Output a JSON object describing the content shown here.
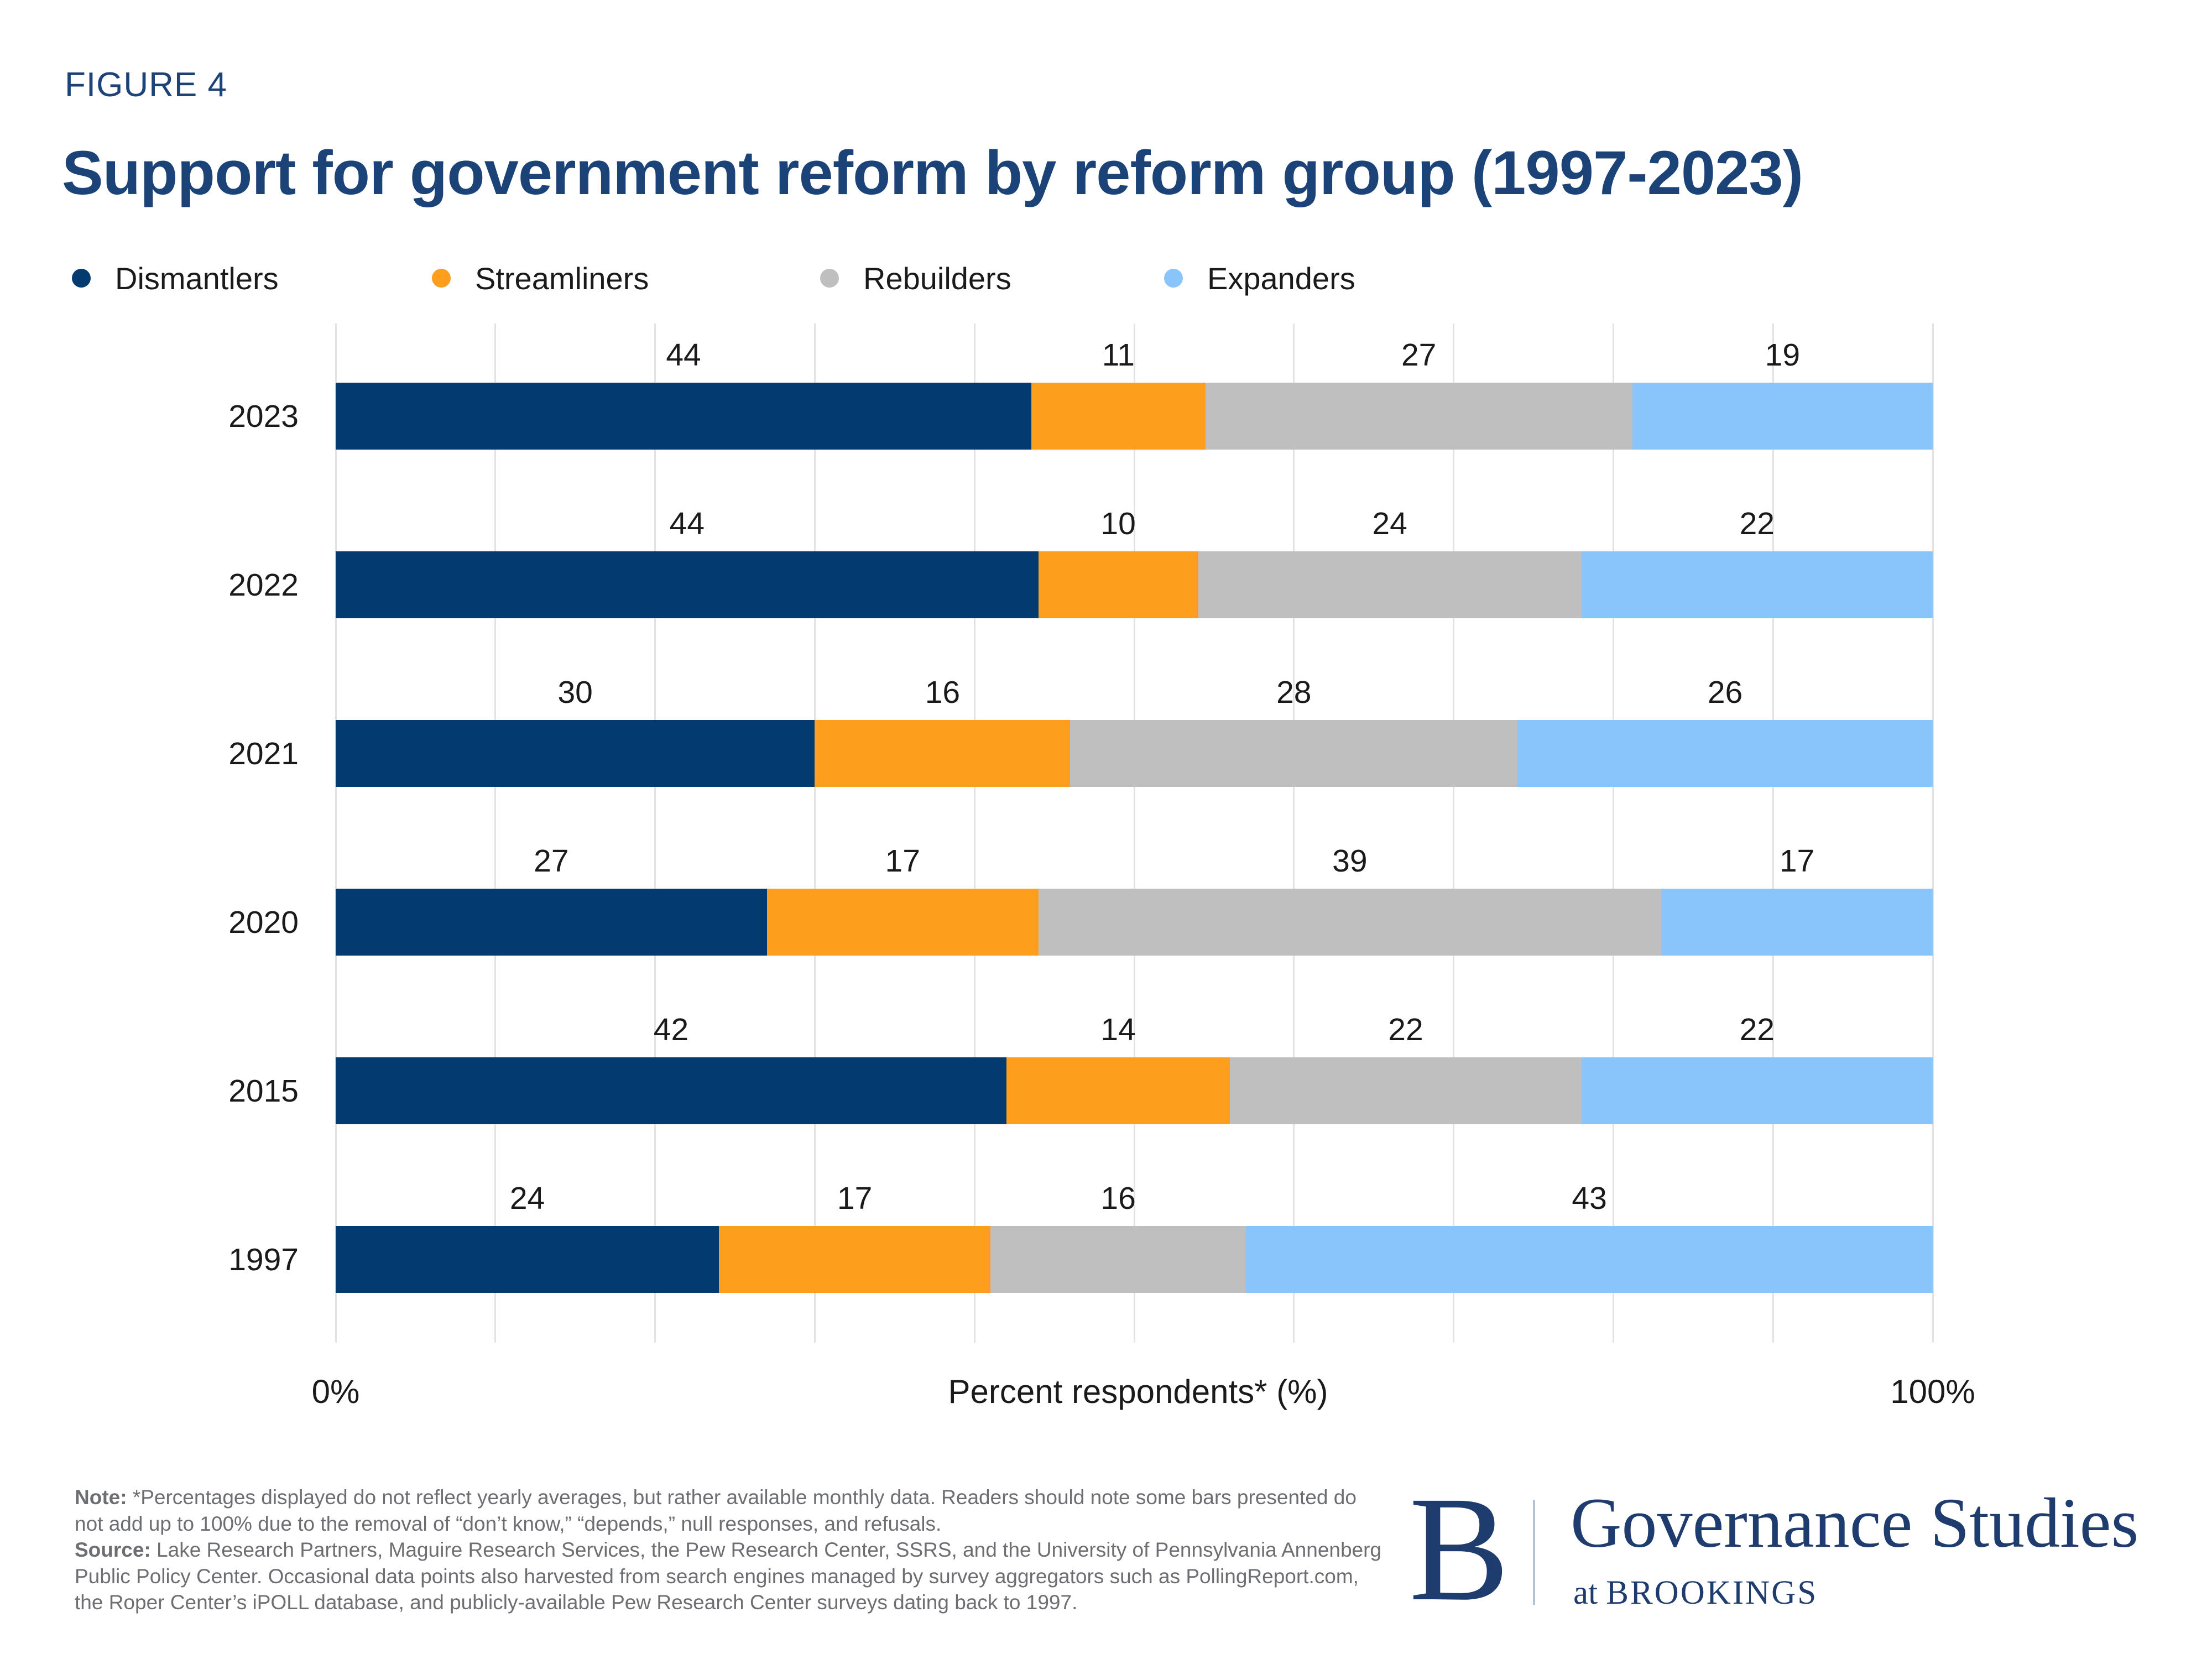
{
  "figure_label": "FIGURE 4",
  "title": "Support for government reform by reform group (1997-2023)",
  "legend": [
    {
      "label": "Dismantlers",
      "color": "#033b70"
    },
    {
      "label": "Streamliners",
      "color": "#fd9e1c"
    },
    {
      "label": "Rebuilders",
      "color": "#bfbfbf"
    },
    {
      "label": "Expanders",
      "color": "#89c4fb"
    }
  ],
  "chart_data": {
    "type": "bar",
    "orientation": "horizontal",
    "stacked": true,
    "categories": [
      "2023",
      "2022",
      "2021",
      "2020",
      "2015",
      "1997"
    ],
    "series": [
      {
        "name": "Dismantlers",
        "color": "#033b70",
        "values": [
          44,
          44,
          30,
          27,
          42,
          24
        ]
      },
      {
        "name": "Streamliners",
        "color": "#fd9e1c",
        "values": [
          11,
          10,
          16,
          17,
          14,
          17
        ]
      },
      {
        "name": "Rebuilders",
        "color": "#bfbfbf",
        "values": [
          27,
          24,
          28,
          39,
          22,
          16
        ]
      },
      {
        "name": "Expanders",
        "color": "#89c4fb",
        "values": [
          19,
          22,
          26,
          17,
          22,
          43
        ]
      }
    ],
    "title": "Support for government reform by reform group (1997-2023)",
    "xlabel": "Percent respondents* (%)",
    "ylabel": "",
    "xlim": [
      0,
      100
    ],
    "x_tick_labels": [
      "0%",
      "100%"
    ],
    "grid": "vertical gridlines every 10%",
    "legend_position": "top",
    "value_labels": "above each segment"
  },
  "axis": {
    "x_min_label": "0%",
    "x_max_label": "100%",
    "x_title": "Percent respondents* (%)"
  },
  "footnote": {
    "note_label": "Note:",
    "note_text": "*Percentages displayed do not reflect yearly averages, but rather available monthly data. Readers should note some bars presented do not add up to 100% due to the removal of “don’t know,” “depends,” null responses, and refusals.",
    "source_label": "Source:",
    "source_text": "Lake Research Partners, Maguire Research Services, the Pew Research Center, SSRS, and the University of Pennsylvania Annenberg Public Policy Center. Occasional data points also harvested from search engines managed by survey aggregators such as PollingReport.com, the Roper Center’s iPOLL database, and publicly-available Pew Research Center surveys dating back to 1997."
  },
  "logo": {
    "b": "B",
    "name": "Governance Studies",
    "sub_at": "at",
    "sub_org": "BROOKINGS"
  }
}
